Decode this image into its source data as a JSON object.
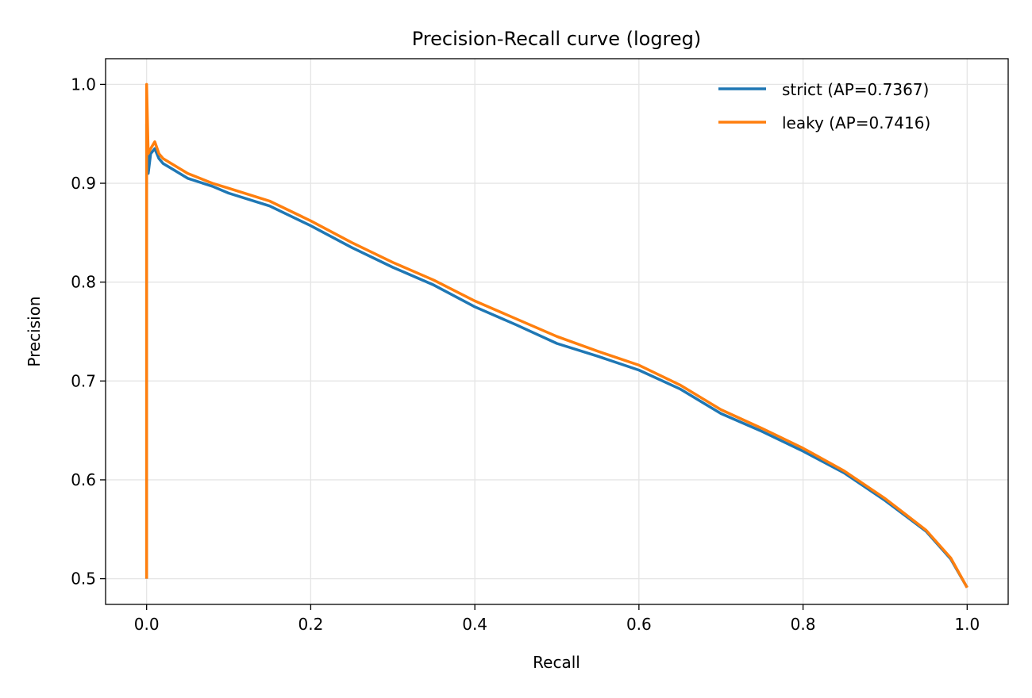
{
  "chart_data": {
    "type": "line",
    "title": "Precision-Recall curve (logreg)",
    "xlabel": "Recall",
    "ylabel": "Precision",
    "xlim": [
      -0.05,
      1.05
    ],
    "ylim": [
      0.474,
      1.026
    ],
    "xticks": [
      "0.0",
      "0.2",
      "0.4",
      "0.6",
      "0.8",
      "1.0"
    ],
    "yticks": [
      "0.5",
      "0.6",
      "0.7",
      "0.8",
      "0.9",
      "1.0"
    ],
    "grid": true,
    "legend_position": "top-right",
    "series": [
      {
        "name": "strict (AP=0.7367)",
        "color": "#1f77b4",
        "x": [
          0,
          0,
          0,
          0.002,
          0.005,
          0.01,
          0.015,
          0.02,
          0.03,
          0.05,
          0.08,
          0.1,
          0.15,
          0.2,
          0.25,
          0.3,
          0.35,
          0.4,
          0.45,
          0.5,
          0.55,
          0.6,
          0.65,
          0.7,
          0.75,
          0.8,
          0.85,
          0.9,
          0.95,
          0.98,
          1.0
        ],
        "y": [
          0.5,
          0.5,
          0.96,
          0.91,
          0.93,
          0.935,
          0.925,
          0.92,
          0.915,
          0.905,
          0.897,
          0.89,
          0.877,
          0.857,
          0.835,
          0.815,
          0.797,
          0.775,
          0.757,
          0.738,
          0.725,
          0.711,
          0.692,
          0.667,
          0.649,
          0.629,
          0.607,
          0.579,
          0.548,
          0.52,
          0.491
        ]
      },
      {
        "name": "leaky (AP=0.7416)",
        "color": "#ff7f0e",
        "x": [
          0,
          0,
          0,
          0.002,
          0.005,
          0.01,
          0.015,
          0.02,
          0.03,
          0.05,
          0.08,
          0.1,
          0.15,
          0.2,
          0.25,
          0.3,
          0.35,
          0.4,
          0.45,
          0.5,
          0.55,
          0.6,
          0.65,
          0.7,
          0.75,
          0.8,
          0.85,
          0.9,
          0.95,
          0.98,
          1.0
        ],
        "y": [
          0.5,
          0.5,
          1.0,
          0.93,
          0.935,
          0.942,
          0.93,
          0.925,
          0.92,
          0.91,
          0.9,
          0.895,
          0.882,
          0.862,
          0.84,
          0.82,
          0.802,
          0.781,
          0.763,
          0.745,
          0.73,
          0.716,
          0.696,
          0.671,
          0.652,
          0.632,
          0.609,
          0.581,
          0.549,
          0.521,
          0.491
        ]
      }
    ]
  }
}
